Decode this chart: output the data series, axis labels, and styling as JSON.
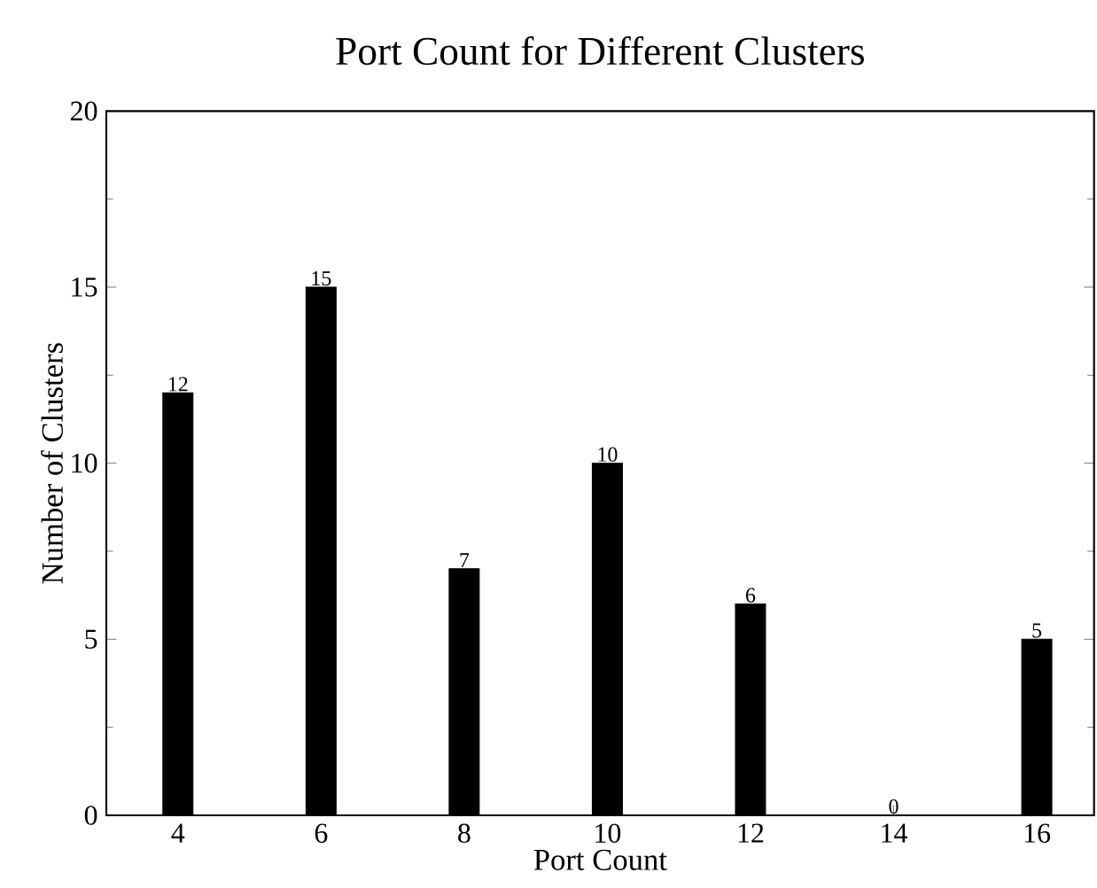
{
  "chart_data": {
    "type": "bar",
    "title": "Port Count for Different Clusters",
    "xlabel": "Port Count",
    "ylabel": "Number of Clusters",
    "x": [
      4,
      6,
      8,
      10,
      12,
      14,
      16
    ],
    "values": [
      12,
      15,
      7,
      10,
      6,
      0,
      5
    ],
    "color": "#000000",
    "xlim": [
      3,
      16.8
    ],
    "xticks": [
      4,
      6,
      8,
      10,
      12,
      14,
      16
    ],
    "ylim": [
      0,
      20
    ],
    "yticks": [
      0,
      5,
      10,
      15,
      20
    ],
    "data_labels": true,
    "grid": false
  }
}
